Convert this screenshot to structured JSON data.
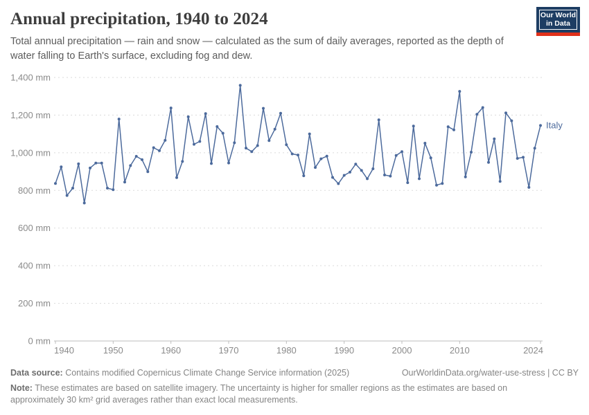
{
  "header": {
    "title": "Annual precipitation, 1940 to 2024",
    "subtitle": "Total annual precipitation — rain and snow — calculated as the sum of daily averages, reported as the depth of water falling to Earth's surface, excluding fog and dew.",
    "logo": {
      "line1": "Our World",
      "line2": "in Data",
      "bg_color": "#1d3d63",
      "bar_color": "#e0311b"
    }
  },
  "chart_data": {
    "type": "line",
    "title": "Annual precipitation, 1940 to 2024",
    "xlabel": "",
    "ylabel": "",
    "unit": "mm",
    "xlim": [
      1940,
      2024
    ],
    "ylim": [
      0,
      1400
    ],
    "x_start": 1940,
    "x_ticks": [
      1940,
      1950,
      1960,
      1970,
      1980,
      1990,
      2000,
      2010,
      2024
    ],
    "y_ticks": [
      0,
      200,
      400,
      600,
      800,
      1000,
      1200,
      1400
    ],
    "grid": "horizontal-dashed",
    "legend": "end-of-line-label",
    "colors": {
      "line": "#4C6A9C",
      "grid": "#dadada",
      "axis": "#bdbdbd",
      "tick_label": "#8a8a8a"
    },
    "series": [
      {
        "name": "Italy",
        "color": "#4C6A9C",
        "values": [
          837,
          925,
          773,
          812,
          941,
          733,
          919,
          945,
          945,
          812,
          804,
          1179,
          844,
          932,
          981,
          963,
          899,
          1027,
          1011,
          1066,
          1238,
          868,
          954,
          1191,
          1045,
          1060,
          1208,
          943,
          1139,
          1104,
          946,
          1053,
          1358,
          1025,
          1006,
          1038,
          1236,
          1065,
          1125,
          1210,
          1043,
          994,
          988,
          878,
          1100,
          922,
          968,
          982,
          869,
          836,
          880,
          897,
          940,
          906,
          862,
          915,
          1175,
          882,
          876,
          986,
          1006,
          841,
          1142,
          862,
          1051,
          973,
          828,
          837,
          1138,
          1122,
          1326,
          872,
          1003,
          1204,
          1240,
          949,
          1074,
          848,
          1212,
          1170,
          970,
          976,
          816,
          1024,
          1145
        ]
      }
    ]
  },
  "footer": {
    "datasource_label": "Data source:",
    "datasource_text": " Contains modified Copernicus Climate Change Service information (2025)",
    "link_text": "OurWorldinData.org/water-use-stress | CC BY",
    "note_label": "Note:",
    "note_text": " These estimates are based on satellite imagery. The uncertainty is higher for smaller regions as the estimates are based on approximately 30 km² grid averages rather than exact local measurements."
  }
}
